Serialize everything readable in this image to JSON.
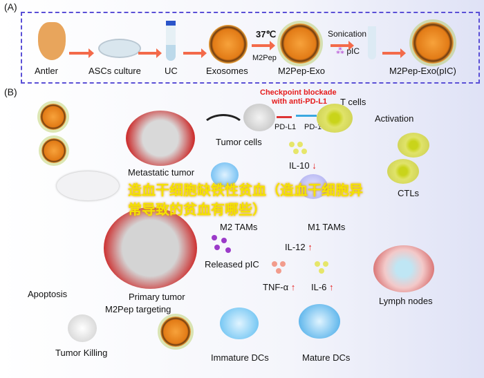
{
  "panel_a": {
    "label": "(A)",
    "steps": [
      "Antler",
      "ASCs culture",
      "UC",
      "Exosomes",
      "M2Pep-Exo",
      "M2Pep-Exo(pIC)"
    ],
    "temperature": "37℃",
    "peptide": "M2Pep",
    "sonication": "Sonication",
    "pic": "pIC"
  },
  "panel_b": {
    "label": "(B)",
    "checkpoint_line1": "Checkpoint blockade",
    "checkpoint_line2": "with anti-PD-L1",
    "t_cells": "T cells",
    "pd_l1": "PD-L1",
    "pd_1": "PD-1",
    "tumor_cells": "Tumor cells",
    "activation": "Activation",
    "metastatic_tumor": "Metastatic tumor",
    "il10": "IL-10",
    "m2_tams": "M2 TAMs",
    "m1_tams": "M1 TAMs",
    "ctls": "CTLs",
    "il12": "IL-12",
    "released_pic": "Released pIC",
    "tnf": "TNF-α",
    "il6": "IL-6",
    "primary_tumor": "Primary tumor",
    "apoptosis": "Apoptosis",
    "m2pep_targeting": "M2Pep targeting",
    "lymph_nodes": "Lymph nodes",
    "tumor_killing": "Tumor Killing",
    "immature_dcs": "Immature DCs",
    "mature_dcs": "Mature DCs",
    "up_arrow": "↑",
    "down_arrow": "↓"
  },
  "watermark": "造血干细胞缺铁性贫血（造血干细胞异常导致的贫血有哪些）",
  "colors": {
    "dashed_border": "#5a4fd6",
    "process_arrow": "#f36a4a",
    "checkpoint_text": "#e51b1b",
    "watermark": "#f4e300"
  }
}
